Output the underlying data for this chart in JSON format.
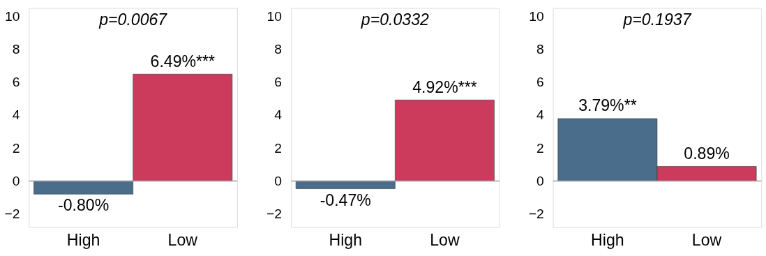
{
  "chart_data": [
    {
      "type": "bar",
      "title": "p=0.0067",
      "categories": [
        "High",
        "Low"
      ],
      "values": [
        -0.8,
        6.49
      ],
      "colors": [
        "#4a6d8c",
        "#cc3a5c"
      ],
      "value_labels": [
        "-0.80%",
        "6.49%***"
      ],
      "ylim": [
        -2.8,
        10.5
      ],
      "yticks": [
        -2,
        0,
        2,
        4,
        6,
        8,
        10
      ],
      "ref_lines": [
        {
          "axis": "y",
          "value": 0,
          "color": "#a0a0a0"
        }
      ],
      "grid": false
    },
    {
      "type": "bar",
      "title": "p=0.0332",
      "categories": [
        "High",
        "Low"
      ],
      "values": [
        -0.47,
        4.92
      ],
      "colors": [
        "#4a6d8c",
        "#cc3a5c"
      ],
      "value_labels": [
        "-0.47%",
        "4.92%***"
      ],
      "ylim": [
        -2.8,
        10.5
      ],
      "yticks": [
        -2,
        0,
        2,
        4,
        6,
        8,
        10
      ],
      "ref_lines": [
        {
          "axis": "y",
          "value": 0,
          "color": "#a0a0a0"
        }
      ],
      "grid": false
    },
    {
      "type": "bar",
      "title": "p=0.1937",
      "categories": [
        "High",
        "Low"
      ],
      "values": [
        3.79,
        0.89
      ],
      "colors": [
        "#4a6d8c",
        "#cc3a5c"
      ],
      "value_labels": [
        "3.79%**",
        "0.89%"
      ],
      "ylim": [
        -2.8,
        10.5
      ],
      "yticks": [
        -2,
        0,
        2,
        4,
        6,
        8,
        10
      ],
      "ref_lines": [
        {
          "axis": "y",
          "value": 0,
          "color": "#a0a0a0"
        }
      ],
      "grid": false
    }
  ]
}
